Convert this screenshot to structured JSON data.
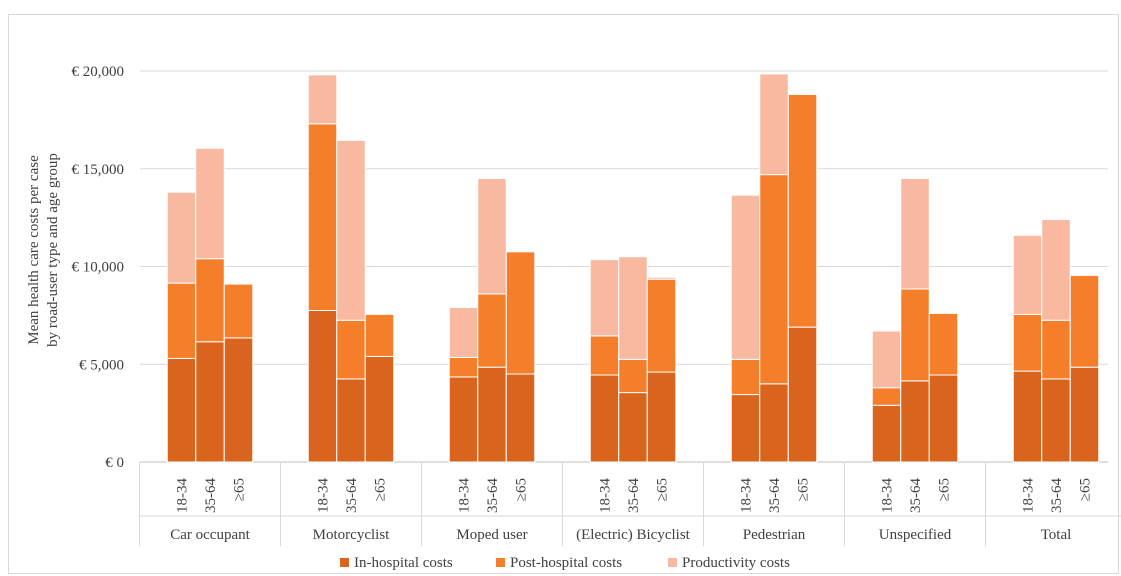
{
  "chart_data": {
    "type": "bar",
    "stacked": true,
    "ylabel": [
      "Mean health care costs per case",
      "by road-user type and age group"
    ],
    "ylim": [
      0,
      20000
    ],
    "yticks": [
      0,
      5000,
      10000,
      15000,
      20000
    ],
    "ytick_labels": [
      "€ 0",
      "€ 5,000",
      "€ 10,000",
      "€ 15,000",
      "€ 20,000"
    ],
    "grid": true,
    "legend_position": "bottom",
    "groups": [
      "Car occupant",
      "Motorcyclist",
      "Moped user",
      "(Electric) Bicyclist",
      "Pedestrian",
      "Unspecified",
      "Total"
    ],
    "age_groups": [
      "18-34",
      "35-64",
      "≥65"
    ],
    "series": [
      {
        "name": "In-hospital costs",
        "color": "#d9641e",
        "values": [
          [
            5300,
            6150,
            6350
          ],
          [
            7750,
            4250,
            5400
          ],
          [
            4350,
            4850,
            4500
          ],
          [
            4450,
            3550,
            4600
          ],
          [
            3450,
            4000,
            6900
          ],
          [
            2900,
            4150,
            4450
          ],
          [
            4650,
            4250,
            4850
          ]
        ]
      },
      {
        "name": "Post-hospital costs",
        "color": "#f47e2a",
        "values": [
          [
            3850,
            4250,
            2750
          ],
          [
            9550,
            3000,
            2150
          ],
          [
            1000,
            3750,
            6250
          ],
          [
            2000,
            1700,
            4750
          ],
          [
            1800,
            10700,
            11900
          ],
          [
            900,
            4700,
            3150
          ],
          [
            2900,
            3000,
            4700
          ]
        ]
      },
      {
        "name": "Productivity costs",
        "color": "#f9b9a0",
        "values": [
          [
            4650,
            5650,
            0
          ],
          [
            2500,
            9200,
            0
          ],
          [
            2550,
            5900,
            0
          ],
          [
            3900,
            5250,
            100
          ],
          [
            8400,
            5150,
            0
          ],
          [
            2900,
            5650,
            0
          ],
          [
            4050,
            5150,
            50
          ]
        ]
      }
    ]
  }
}
